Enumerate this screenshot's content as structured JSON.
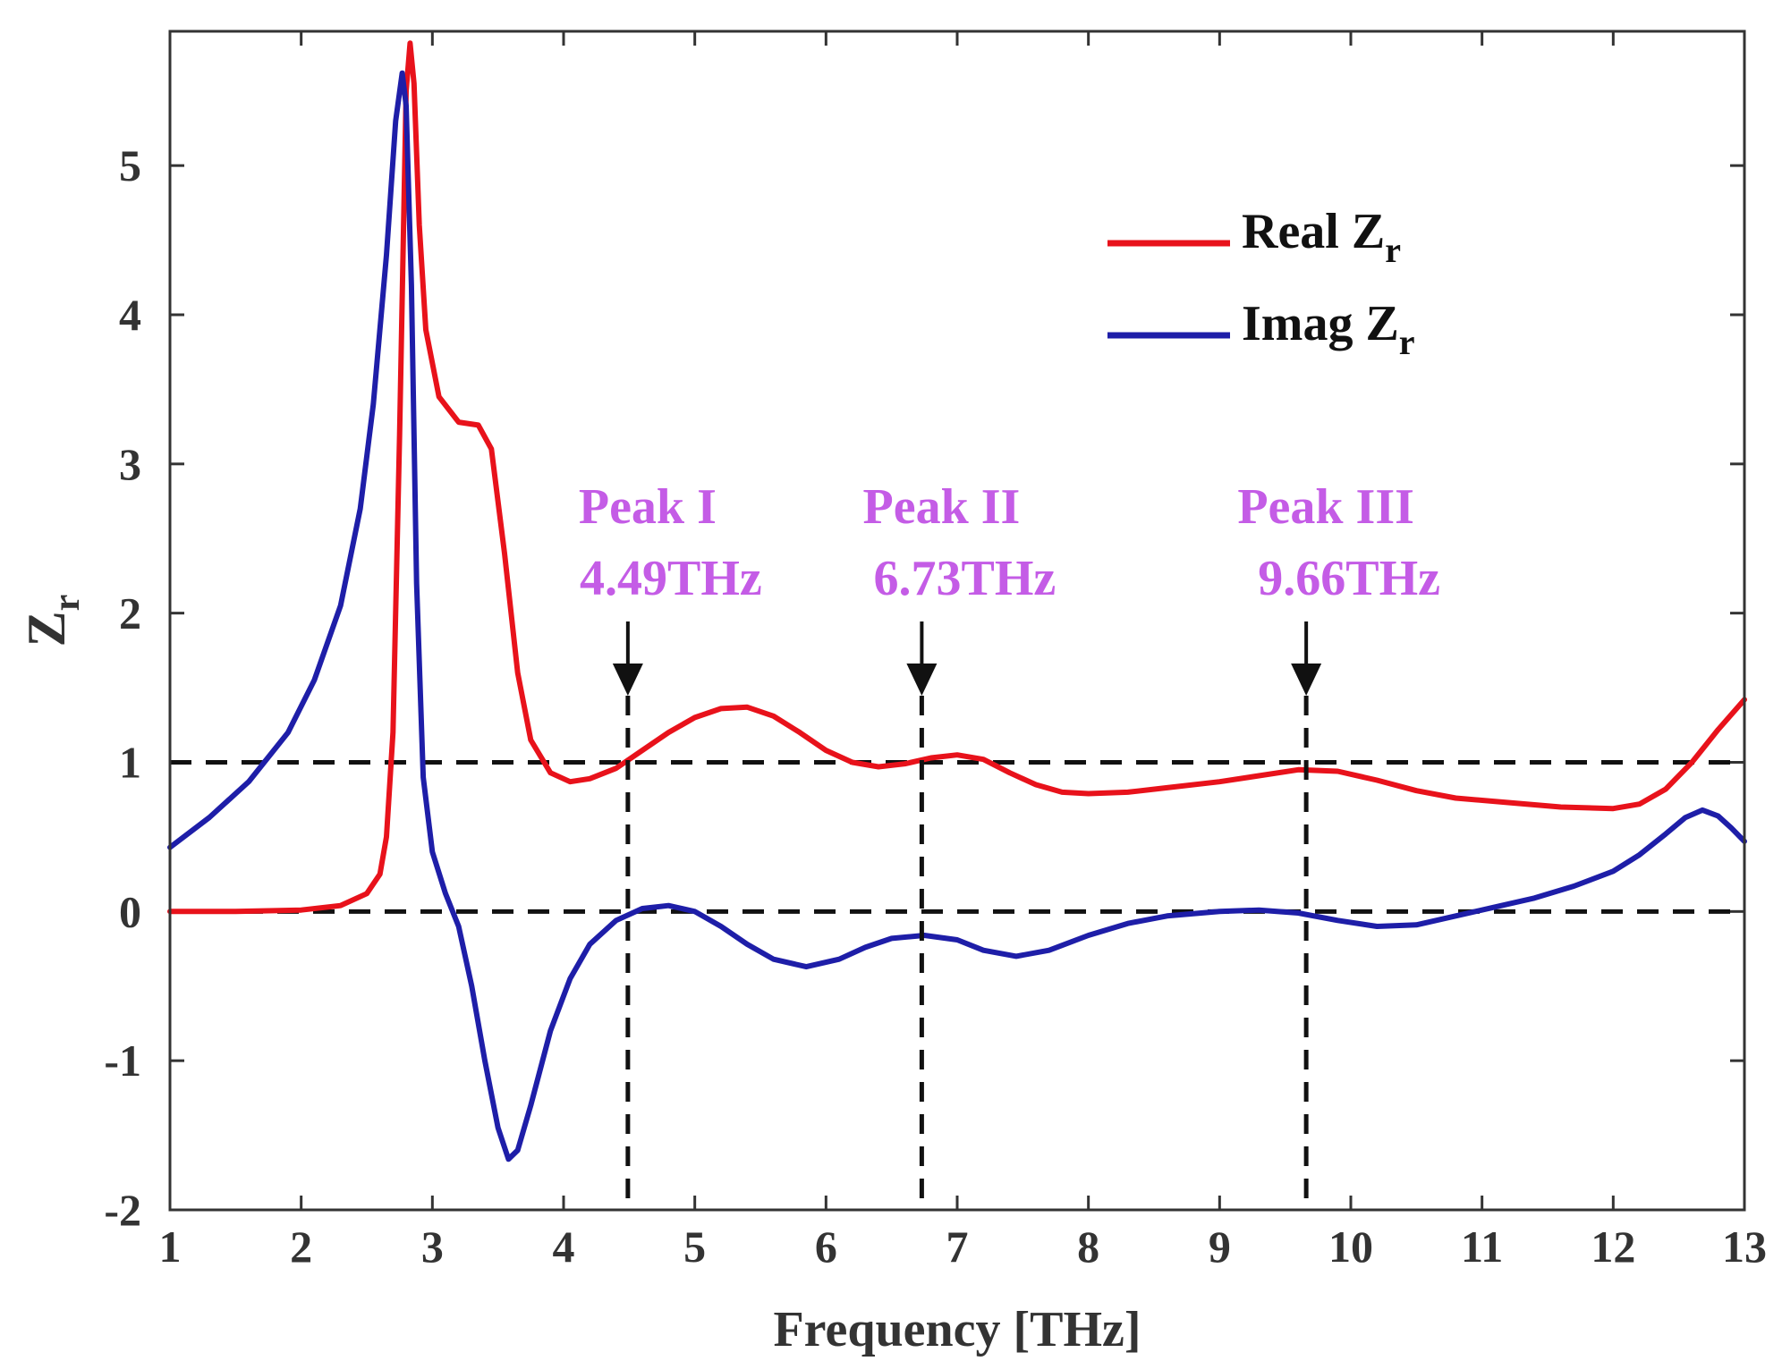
{
  "chart_data": {
    "type": "line",
    "title": "",
    "xlabel": "Frequency [THz]",
    "ylabel": "Z",
    "ylabel_sub": "r",
    "xlim": [
      1,
      13
    ],
    "ylim": [
      -2,
      5.9
    ],
    "xticks": [
      1,
      2,
      3,
      4,
      5,
      6,
      7,
      8,
      9,
      10,
      11,
      12,
      13
    ],
    "yticks": [
      -2,
      -1,
      0,
      1,
      2,
      3,
      4,
      5
    ],
    "legend_position": "top-right",
    "series": [
      {
        "name": "Real Z",
        "name_sub": "r",
        "color": "#e8121b",
        "points": [
          [
            1.0,
            0.0
          ],
          [
            1.5,
            0.0
          ],
          [
            2.0,
            0.01
          ],
          [
            2.3,
            0.04
          ],
          [
            2.5,
            0.12
          ],
          [
            2.6,
            0.25
          ],
          [
            2.65,
            0.5
          ],
          [
            2.7,
            1.2
          ],
          [
            2.75,
            3.2
          ],
          [
            2.8,
            5.5
          ],
          [
            2.83,
            5.82
          ],
          [
            2.86,
            5.55
          ],
          [
            2.9,
            4.6
          ],
          [
            2.95,
            3.9
          ],
          [
            3.05,
            3.45
          ],
          [
            3.2,
            3.28
          ],
          [
            3.35,
            3.26
          ],
          [
            3.45,
            3.1
          ],
          [
            3.55,
            2.4
          ],
          [
            3.65,
            1.6
          ],
          [
            3.75,
            1.15
          ],
          [
            3.9,
            0.93
          ],
          [
            4.05,
            0.87
          ],
          [
            4.2,
            0.89
          ],
          [
            4.4,
            0.96
          ],
          [
            4.6,
            1.08
          ],
          [
            4.8,
            1.2
          ],
          [
            5.0,
            1.3
          ],
          [
            5.2,
            1.36
          ],
          [
            5.4,
            1.37
          ],
          [
            5.6,
            1.31
          ],
          [
            5.8,
            1.2
          ],
          [
            6.0,
            1.08
          ],
          [
            6.2,
            1.0
          ],
          [
            6.4,
            0.97
          ],
          [
            6.6,
            0.99
          ],
          [
            6.8,
            1.03
          ],
          [
            7.0,
            1.05
          ],
          [
            7.2,
            1.02
          ],
          [
            7.4,
            0.93
          ],
          [
            7.6,
            0.85
          ],
          [
            7.8,
            0.8
          ],
          [
            8.0,
            0.79
          ],
          [
            8.3,
            0.8
          ],
          [
            8.6,
            0.83
          ],
          [
            9.0,
            0.87
          ],
          [
            9.3,
            0.91
          ],
          [
            9.6,
            0.95
          ],
          [
            9.9,
            0.94
          ],
          [
            10.2,
            0.88
          ],
          [
            10.5,
            0.81
          ],
          [
            10.8,
            0.76
          ],
          [
            11.2,
            0.73
          ],
          [
            11.6,
            0.7
          ],
          [
            12.0,
            0.69
          ],
          [
            12.2,
            0.72
          ],
          [
            12.4,
            0.82
          ],
          [
            12.6,
            1.0
          ],
          [
            12.8,
            1.22
          ],
          [
            13.0,
            1.42
          ]
        ]
      },
      {
        "name": "Imag Z",
        "name_sub": "r",
        "color": "#1e1ea8",
        "points": [
          [
            1.0,
            0.43
          ],
          [
            1.3,
            0.63
          ],
          [
            1.6,
            0.87
          ],
          [
            1.9,
            1.2
          ],
          [
            2.1,
            1.55
          ],
          [
            2.3,
            2.05
          ],
          [
            2.45,
            2.7
          ],
          [
            2.55,
            3.4
          ],
          [
            2.65,
            4.4
          ],
          [
            2.72,
            5.3
          ],
          [
            2.77,
            5.62
          ],
          [
            2.8,
            5.4
          ],
          [
            2.84,
            4.2
          ],
          [
            2.88,
            2.2
          ],
          [
            2.93,
            0.9
          ],
          [
            3.0,
            0.4
          ],
          [
            3.1,
            0.12
          ],
          [
            3.2,
            -0.1
          ],
          [
            3.3,
            -0.5
          ],
          [
            3.4,
            -1.0
          ],
          [
            3.5,
            -1.45
          ],
          [
            3.58,
            -1.66
          ],
          [
            3.65,
            -1.6
          ],
          [
            3.75,
            -1.3
          ],
          [
            3.9,
            -0.8
          ],
          [
            4.05,
            -0.45
          ],
          [
            4.2,
            -0.22
          ],
          [
            4.4,
            -0.06
          ],
          [
            4.6,
            0.02
          ],
          [
            4.8,
            0.04
          ],
          [
            5.0,
            0.0
          ],
          [
            5.2,
            -0.1
          ],
          [
            5.4,
            -0.22
          ],
          [
            5.6,
            -0.32
          ],
          [
            5.85,
            -0.37
          ],
          [
            6.1,
            -0.32
          ],
          [
            6.3,
            -0.24
          ],
          [
            6.5,
            -0.18
          ],
          [
            6.75,
            -0.16
          ],
          [
            7.0,
            -0.19
          ],
          [
            7.2,
            -0.26
          ],
          [
            7.45,
            -0.3
          ],
          [
            7.7,
            -0.26
          ],
          [
            8.0,
            -0.16
          ],
          [
            8.3,
            -0.08
          ],
          [
            8.6,
            -0.03
          ],
          [
            9.0,
            0.0
          ],
          [
            9.3,
            0.01
          ],
          [
            9.6,
            -0.01
          ],
          [
            9.9,
            -0.06
          ],
          [
            10.2,
            -0.1
          ],
          [
            10.5,
            -0.09
          ],
          [
            10.8,
            -0.03
          ],
          [
            11.1,
            0.03
          ],
          [
            11.4,
            0.09
          ],
          [
            11.7,
            0.17
          ],
          [
            12.0,
            0.27
          ],
          [
            12.2,
            0.38
          ],
          [
            12.4,
            0.52
          ],
          [
            12.55,
            0.63
          ],
          [
            12.68,
            0.68
          ],
          [
            12.8,
            0.64
          ],
          [
            12.9,
            0.56
          ],
          [
            13.0,
            0.47
          ]
        ]
      }
    ],
    "reference_lines": [
      {
        "orientation": "horizontal",
        "value": 1
      },
      {
        "orientation": "horizontal",
        "value": 0
      }
    ],
    "annotations": [
      {
        "label": "Peak I",
        "value_label": "4.49THz",
        "x": 4.49
      },
      {
        "label": "Peak II",
        "value_label": "6.73THz",
        "x": 6.73
      },
      {
        "label": "Peak III",
        "value_label": "9.66THz",
        "x": 9.66
      }
    ],
    "annotation_color": "#c45ce6"
  }
}
